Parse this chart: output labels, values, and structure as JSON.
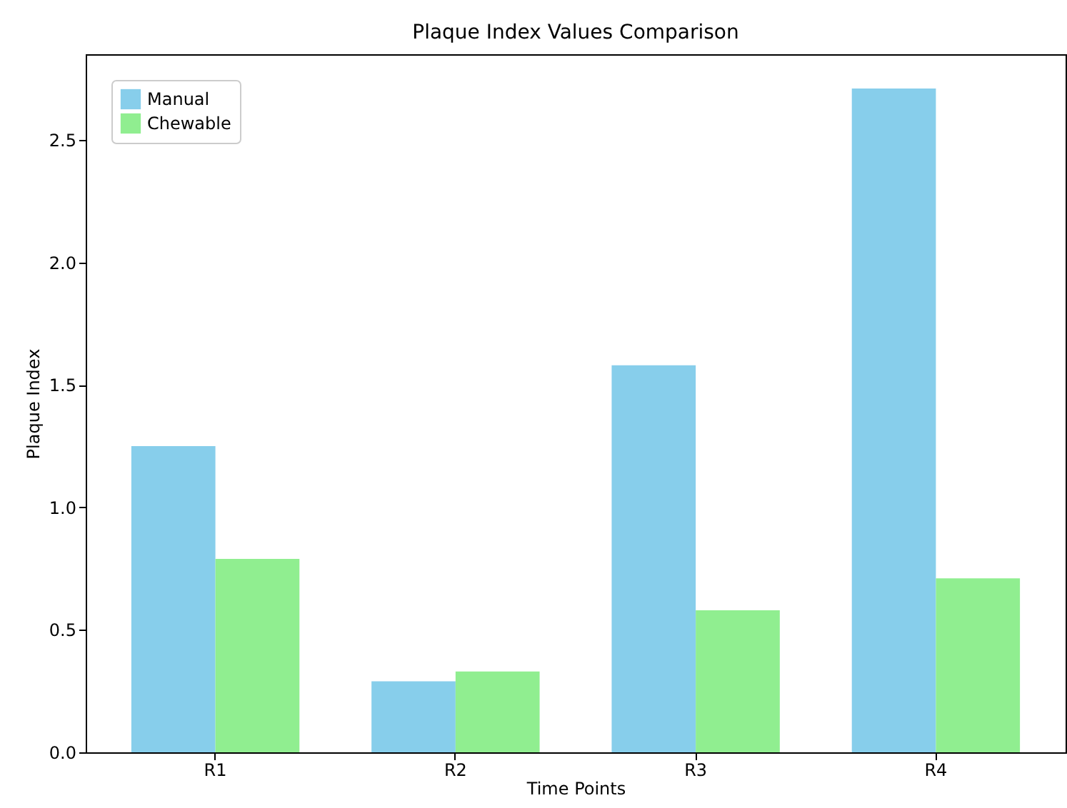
{
  "chart_data": {
    "type": "bar",
    "title": "Plaque Index Values Comparison",
    "xlabel": "Time Points",
    "ylabel": "Plaque Index",
    "categories": [
      "R1",
      "R2",
      "R3",
      "R4"
    ],
    "series": [
      {
        "name": "Manual",
        "color": "#87ceeb",
        "values": [
          1.25,
          0.29,
          1.58,
          2.71
        ]
      },
      {
        "name": "Chewable",
        "color": "#90ee90",
        "values": [
          0.79,
          0.33,
          0.58,
          0.71
        ]
      }
    ],
    "ylim": [
      0,
      2.85
    ],
    "yticks": [
      {
        "value": 0,
        "label": "0.0"
      },
      0.5,
      {
        "value": 1,
        "label": "1.0"
      },
      1.5,
      {
        "value": 2,
        "label": "2.0"
      },
      2.5
    ],
    "legend": "top left",
    "grid": false
  }
}
